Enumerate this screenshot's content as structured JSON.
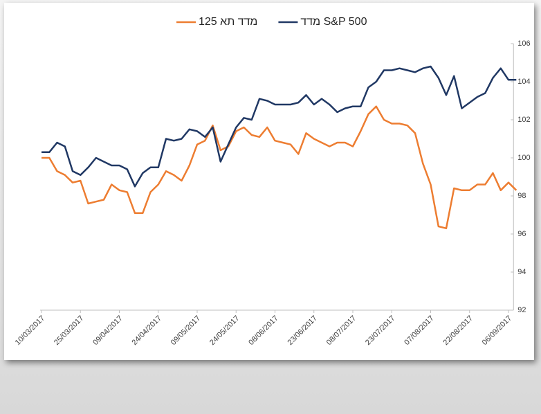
{
  "chart_data": {
    "type": "line",
    "x": [
      "10/03/2017",
      "13/03/2017",
      "16/03/2017",
      "19/03/2017",
      "22/03/2017",
      "25/03/2017",
      "28/03/2017",
      "31/03/2017",
      "03/04/2017",
      "06/04/2017",
      "09/04/2017",
      "12/04/2017",
      "15/04/2017",
      "18/04/2017",
      "21/04/2017",
      "24/04/2017",
      "27/04/2017",
      "30/04/2017",
      "03/05/2017",
      "06/05/2017",
      "09/05/2017",
      "12/05/2017",
      "15/05/2017",
      "18/05/2017",
      "21/05/2017",
      "24/05/2017",
      "27/05/2017",
      "30/05/2017",
      "02/06/2017",
      "05/06/2017",
      "08/06/2017",
      "11/06/2017",
      "14/06/2017",
      "17/06/2017",
      "20/06/2017",
      "23/06/2017",
      "26/06/2017",
      "29/06/2017",
      "02/07/2017",
      "05/07/2017",
      "08/07/2017",
      "11/07/2017",
      "14/07/2017",
      "17/07/2017",
      "20/07/2017",
      "23/07/2017",
      "26/07/2017",
      "29/07/2017",
      "01/08/2017",
      "04/08/2017",
      "07/08/2017",
      "10/08/2017",
      "13/08/2017",
      "16/08/2017",
      "19/08/2017",
      "22/08/2017",
      "25/08/2017",
      "28/08/2017",
      "31/08/2017",
      "03/09/2017",
      "06/09/2017",
      "09/09/2017"
    ],
    "series": [
      {
        "name": "מדד תא 125",
        "color": "#ed7d31",
        "values": [
          100.0,
          100.0,
          99.3,
          99.1,
          98.7,
          98.8,
          97.6,
          97.7,
          97.8,
          98.6,
          98.3,
          98.2,
          97.1,
          97.1,
          98.2,
          98.6,
          99.3,
          99.1,
          98.8,
          99.6,
          100.7,
          100.9,
          101.7,
          100.4,
          100.6,
          101.4,
          101.6,
          101.2,
          101.1,
          101.6,
          100.9,
          100.8,
          100.7,
          100.2,
          101.3,
          101.0,
          100.8,
          100.6,
          100.8,
          100.8,
          100.6,
          101.4,
          102.3,
          102.7,
          102.0,
          101.8,
          101.8,
          101.7,
          101.3,
          99.7,
          98.6,
          96.4,
          96.3,
          98.4,
          98.3,
          98.3,
          98.6,
          98.6,
          99.2,
          98.3,
          98.7,
          98.3
        ]
      },
      {
        "name": "מדד S&P 500",
        "color": "#203864",
        "values": [
          100.3,
          100.3,
          100.8,
          100.6,
          99.3,
          99.1,
          99.5,
          100.0,
          99.8,
          99.6,
          99.6,
          99.4,
          98.5,
          99.2,
          99.5,
          99.5,
          101.0,
          100.9,
          101.0,
          101.5,
          101.4,
          101.1,
          101.6,
          99.8,
          100.7,
          101.6,
          102.1,
          102.0,
          103.1,
          103.0,
          102.8,
          102.8,
          102.8,
          102.9,
          103.3,
          102.8,
          103.1,
          102.8,
          102.4,
          102.6,
          102.7,
          102.7,
          103.7,
          104.0,
          104.6,
          104.6,
          104.7,
          104.6,
          104.5,
          104.7,
          104.8,
          104.2,
          103.3,
          104.3,
          102.6,
          102.9,
          103.2,
          103.4,
          104.2,
          104.7,
          104.1,
          104.1
        ]
      }
    ],
    "xlim": [
      "10/03/2017",
      "09/09/2017"
    ],
    "xticks": [
      "10/03/2017",
      "25/03/2017",
      "09/04/2017",
      "24/04/2017",
      "09/05/2017",
      "24/05/2017",
      "08/06/2017",
      "23/06/2017",
      "08/07/2017",
      "23/07/2017",
      "07/08/2017",
      "22/08/2017",
      "06/09/2017"
    ],
    "ylim": [
      92,
      106
    ],
    "yticks": [
      92,
      94,
      96,
      98,
      100,
      102,
      104,
      106
    ],
    "y_axis_side": "right",
    "grid": false,
    "legend": "top"
  }
}
